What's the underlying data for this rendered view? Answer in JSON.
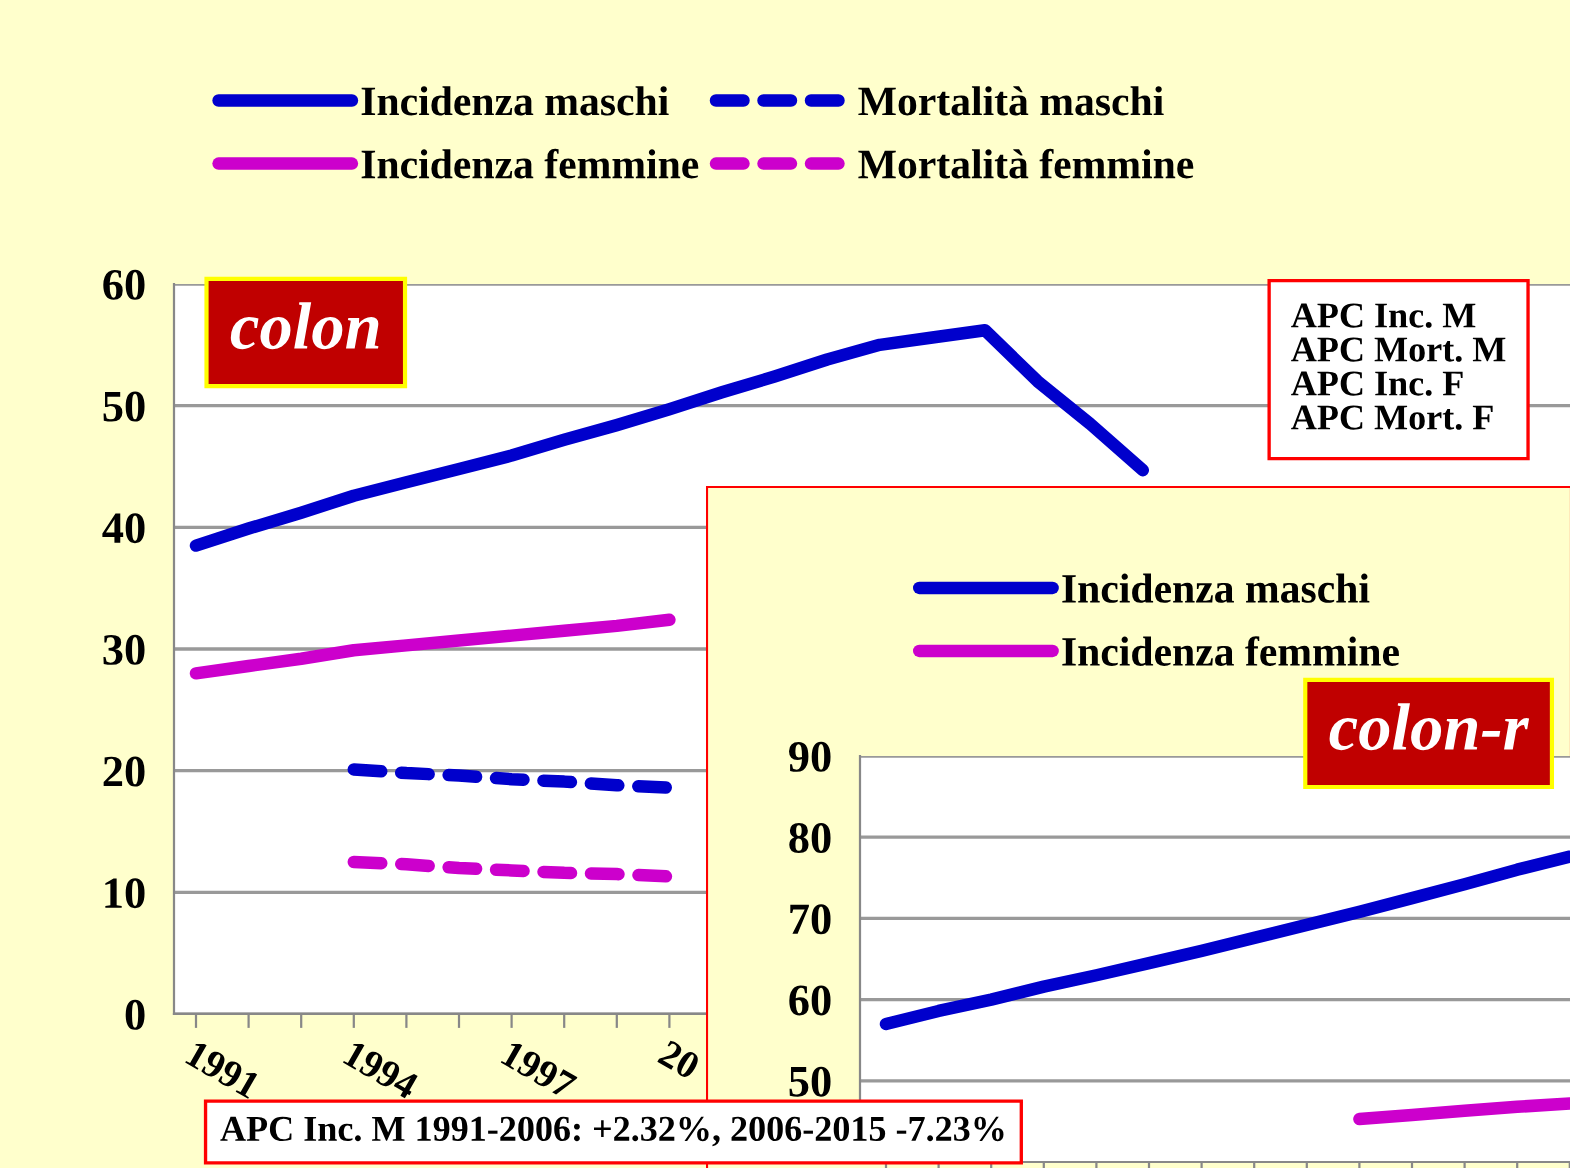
{
  "chart_data": [
    {
      "type": "line",
      "title": "colon",
      "categories": [
        "1991",
        null,
        null,
        "1994",
        null,
        null,
        "1997",
        null,
        null,
        "20",
        null,
        null,
        null,
        null,
        null,
        null,
        null,
        null,
        null,
        null,
        null,
        null,
        null,
        null,
        null
      ],
      "series": [
        {
          "name": "Incidenza maschi",
          "color": "#0000cc",
          "line_style": "solid",
          "values": [
            38.5,
            39.9,
            41.2,
            42.6,
            43.7,
            44.8,
            45.9,
            47.2,
            48.4,
            49.7,
            51.1,
            52.4,
            53.8,
            55.0,
            55.6,
            56.2,
            52.0,
            48.5,
            44.7,
            null,
            null,
            null,
            null,
            null,
            null
          ]
        },
        {
          "name": "Mortalità maschi",
          "color": "#0000cc",
          "line_style": "dashed",
          "values": [
            null,
            null,
            null,
            20.1,
            19.8,
            19.6,
            19.3,
            19.1,
            18.8,
            18.6,
            null,
            null,
            null,
            null,
            null,
            null,
            null,
            null,
            null,
            null,
            null,
            null,
            null,
            null,
            null
          ]
        },
        {
          "name": "Incidenza femmine",
          "color": "#cc00cc",
          "line_style": "solid",
          "values": [
            28.0,
            28.6,
            29.2,
            29.9,
            30.3,
            30.7,
            31.1,
            31.5,
            31.9,
            32.4,
            null,
            null,
            null,
            null,
            null,
            null,
            null,
            null,
            null,
            null,
            null,
            null,
            null,
            null,
            null
          ]
        },
        {
          "name": "Mortalità femmine",
          "color": "#cc00cc",
          "line_style": "dashed",
          "values": [
            null,
            null,
            null,
            12.5,
            12.3,
            12.0,
            11.8,
            11.6,
            11.5,
            11.3,
            null,
            null,
            null,
            null,
            null,
            null,
            null,
            null,
            null,
            null,
            null,
            null,
            null,
            null,
            null
          ]
        }
      ],
      "ylim": [
        0,
        60
      ],
      "yticks": [
        0,
        10,
        20,
        30,
        40,
        50,
        60
      ],
      "grid": "y",
      "legend": "top",
      "marker": "none",
      "annotations": [
        "APC Inc. M",
        "APC Mort. M",
        "APC Inc. F",
        "APC Mort. F"
      ]
    },
    {
      "type": "line",
      "title": "colon-r",
      "categories": [
        null,
        null,
        null,
        null,
        null,
        null,
        null,
        null,
        null,
        null,
        null,
        null,
        null,
        null
      ],
      "series": [
        {
          "name": "Incidenza maschi",
          "color": "#0000cc",
          "line_style": "solid",
          "values": [
            57.0,
            58.6,
            60.0,
            61.6,
            63.0,
            64.5,
            66.0,
            67.6,
            69.2,
            70.8,
            72.5,
            74.2,
            76.0,
            77.6
          ]
        },
        {
          "name": "Incidenza femmine",
          "color": "#cc00cc",
          "line_style": "solid",
          "values": [
            null,
            null,
            null,
            null,
            null,
            null,
            null,
            null,
            null,
            45.3,
            45.8,
            46.3,
            46.8,
            47.2
          ]
        }
      ],
      "ylim": [
        40,
        90
      ],
      "yticks": [
        50,
        60,
        70,
        80,
        90
      ],
      "grid": "y",
      "legend": "top",
      "marker": "none",
      "tick_labels": "y",
      "annotations": [
        "APC Inc. M 1991-2006: +2.32%, 2006-2015 -7.23%"
      ]
    }
  ]
}
